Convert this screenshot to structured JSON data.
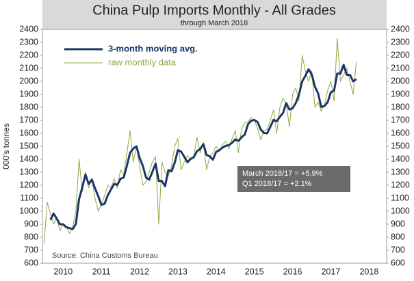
{
  "chart_data": {
    "type": "line",
    "title": "China Pulp Imports Monthly - All Grades",
    "subtitle": "through March 2018",
    "y_label": "000's tonnes",
    "annotations": [
      "March 2018/17 = +5.9%",
      "Q1 2018/17 = +2.1%"
    ],
    "source": "Source: China Customs Bureau",
    "categories": [
      null,
      null,
      null,
      null,
      null,
      null,
      "2010",
      null,
      null,
      null,
      null,
      null,
      null,
      null,
      null,
      null,
      null,
      null,
      "2011",
      null,
      null,
      null,
      null,
      null,
      null,
      null,
      null,
      null,
      null,
      null,
      "2012",
      null,
      null,
      null,
      null,
      null,
      null,
      null,
      null,
      null,
      null,
      null,
      "2013",
      null,
      null,
      null,
      null,
      null,
      null,
      null,
      null,
      null,
      null,
      null,
      "2014",
      null,
      null,
      null,
      null,
      null,
      null,
      null,
      null,
      null,
      null,
      null,
      "2015",
      null,
      null,
      null,
      null,
      null,
      null,
      null,
      null,
      null,
      null,
      null,
      "2016",
      null,
      null,
      null,
      null,
      null,
      null,
      null,
      null,
      null,
      null,
      null,
      "2017",
      null,
      null,
      null,
      null,
      null,
      null,
      null,
      null,
      null,
      null,
      null,
      "2018",
      null,
      null,
      null,
      null,
      null
    ],
    "series": [
      {
        "name": "3-month moving avg.",
        "color": "#1a3566",
        "width": 3,
        "values": [
          null,
          null,
          933,
          983,
          943,
          900,
          900,
          877,
          870,
          863,
          903,
          1093,
          1183,
          1283,
          1210,
          1243,
          1177,
          1117,
          1050,
          1057,
          1123,
          1167,
          1210,
          1203,
          1250,
          1260,
          1350,
          1450,
          1483,
          1500,
          1410,
          1350,
          1260,
          1243,
          1303,
          1367,
          1233,
          1233,
          1193,
          1317,
          1307,
          1373,
          1470,
          1460,
          1420,
          1377,
          1403,
          1417,
          1463,
          1480,
          1517,
          1433,
          1423,
          1397,
          1457,
          1470,
          1490,
          1503,
          1510,
          1527,
          1553,
          1543,
          1570,
          1590,
          1670,
          1697,
          1703,
          1687,
          1630,
          1603,
          1600,
          1650,
          1703,
          1693,
          1727,
          1757,
          1833,
          1783,
          1793,
          1833,
          1900,
          2000,
          2043,
          2093,
          2053,
          1960,
          1907,
          1803,
          1810,
          1840,
          1917,
          1927,
          2060,
          2060,
          2127,
          2050,
          2050,
          2000,
          2017,
          null,
          null,
          null,
          null,
          null,
          null,
          null,
          null,
          null
        ]
      },
      {
        "name": "raw monthly data",
        "color": "#8fa83a",
        "width": 1,
        "values": [
          750,
          1070,
          980,
          900,
          950,
          850,
          900,
          880,
          830,
          880,
          1000,
          1400,
          1150,
          1300,
          1180,
          1250,
          1100,
          1000,
          1050,
          1120,
          1200,
          1180,
          1250,
          1180,
          1320,
          1280,
          1450,
          1620,
          1380,
          1500,
          1350,
          1200,
          1230,
          1300,
          1380,
          1420,
          900,
          1380,
          1300,
          1270,
          1350,
          1500,
          1560,
          1320,
          1380,
          1430,
          1400,
          1420,
          1570,
          1450,
          1530,
          1320,
          1420,
          1450,
          1500,
          1460,
          1510,
          1540,
          1480,
          1560,
          1620,
          1450,
          1640,
          1680,
          1690,
          1720,
          1700,
          1640,
          1550,
          1620,
          1630,
          1700,
          1780,
          1600,
          1800,
          1870,
          1830,
          1650,
          1900,
          1950,
          1850,
          2200,
          2080,
          2000,
          2080,
          1800,
          1840,
          1770,
          1820,
          1930,
          2000,
          1850,
          2330,
          2000,
          2050,
          2100,
          2000,
          1900,
          2150,
          null,
          null,
          null,
          null,
          null,
          null,
          null,
          null,
          null
        ]
      }
    ],
    "ylim": [
      600,
      2400
    ],
    "yticks": [
      600,
      700,
      800,
      900,
      1000,
      1100,
      1200,
      1300,
      1400,
      1500,
      1600,
      1700,
      1800,
      1900,
      2000,
      2100,
      2200,
      2300,
      2400
    ],
    "y2lim": [
      600,
      2400
    ],
    "y2ticks": [
      600,
      700,
      800,
      900,
      1000,
      1100,
      1200,
      1300,
      1400,
      1500,
      1600,
      1700,
      1800,
      1900,
      2000,
      2100,
      2200,
      2300,
      2400
    ],
    "grid": false,
    "legend": "top-left"
  }
}
